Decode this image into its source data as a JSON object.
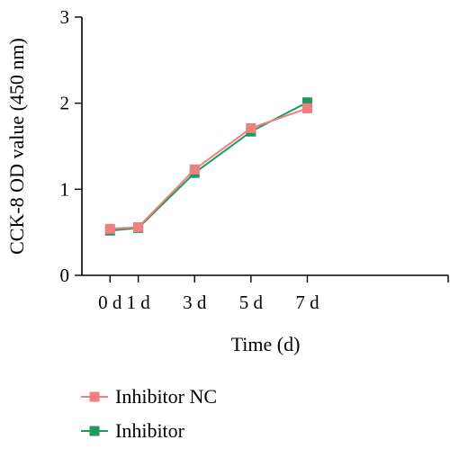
{
  "chart_data": {
    "type": "line",
    "xlabel": "Time (d)",
    "ylabel": "CCK-8 OD value (450 nm)",
    "x": [
      0,
      1,
      3,
      5,
      7
    ],
    "x_tick_labels": [
      "0 d",
      "1 d",
      "3 d",
      "5 d",
      "7 d"
    ],
    "xlim": [
      -1,
      12
    ],
    "ylim": [
      0,
      3
    ],
    "y_ticks": [
      0,
      1,
      2,
      3
    ],
    "y_tick_labels": [
      "0",
      "1",
      "2",
      "3"
    ],
    "grid": false,
    "legend_position": "bottom-left",
    "series": [
      {
        "name": "Inhibitor NC",
        "color": "#f08080",
        "marker": "square",
        "values": [
          0.54,
          0.56,
          1.23,
          1.71,
          1.94
        ]
      },
      {
        "name": "Inhibitor",
        "color": "#1f9a5f",
        "marker": "square",
        "values": [
          0.52,
          0.55,
          1.19,
          1.67,
          2.01
        ]
      }
    ]
  }
}
